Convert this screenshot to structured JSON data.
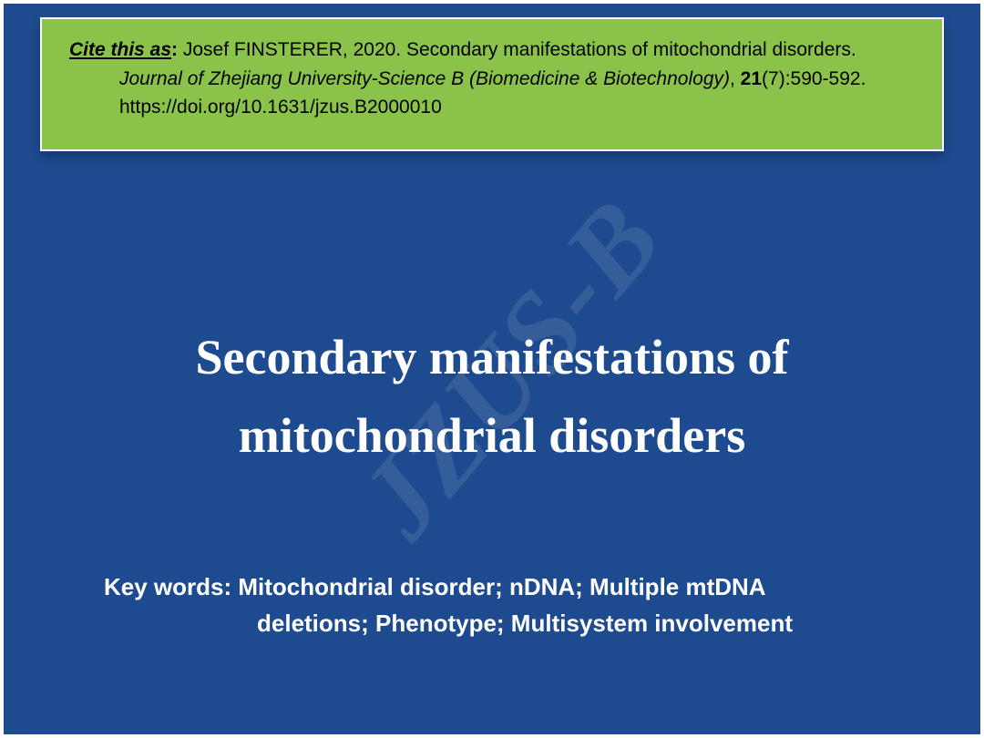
{
  "citation": {
    "label": "Cite this as",
    "colon": ":",
    "author_text": "  Josef FINSTERER, 2020. Secondary manifestations of mitochondrial disorders.",
    "journal": "Journal of Zhejiang University-Science B (Biomedicine & Biotechnology)",
    "comma_space": ", ",
    "volume": "21",
    "pages": "(7):590-592.",
    "doi": "https://doi.org/10.1631/jzus.B2000010"
  },
  "watermark": "JZUS-B",
  "title": {
    "line1": "Secondary manifestations of",
    "line2": "mitochondrial disorders"
  },
  "keywords": {
    "label": "Key words:",
    "line1": "  Mitochondrial disorder; nDNA; Multiple mtDNA",
    "line2": "deletions; Phenotype; Multisystem involvement"
  },
  "colors": {
    "background": "#1e4b8f",
    "citation_bg": "#8bc34a",
    "border": "#ffffff",
    "text_white": "#ffffff",
    "text_black": "#000000"
  }
}
